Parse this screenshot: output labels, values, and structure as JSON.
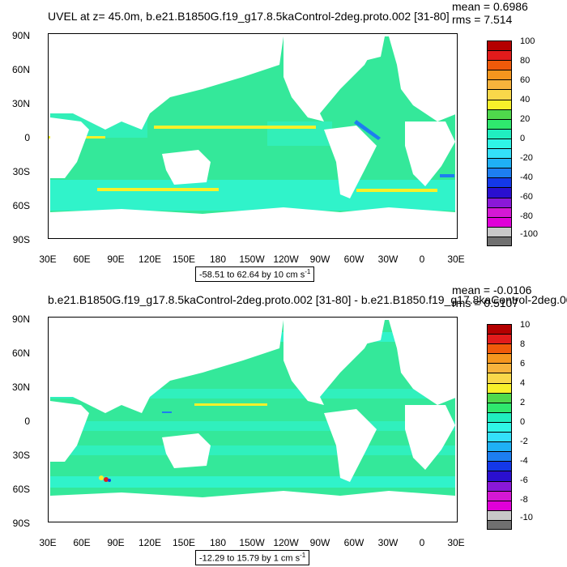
{
  "panels": [
    {
      "title": "UVEL at z=  45.0m, b.e21.B1850G.f19_g17.8.5kaControl-2deg.proto.002 [31-80]",
      "mean": "mean = 0.6986",
      "rms": "rms = 7.514",
      "range_text": "-58.51 to 62.64 by 10 cm s",
      "range_unit_exp": "-1",
      "colorbar_labels": [
        "100",
        "80",
        "60",
        "40",
        "20",
        "0",
        "-20",
        "-40",
        "-60",
        "-80",
        "-100"
      ]
    },
    {
      "title": "b.e21.B1850G.f19_g17.8.5kaControl-2deg.proto.002 [31-80] - b.e21.B1850.f19_g17.8kaControl-2deg.00",
      "mean": "mean = -0.0106",
      "rms": "rms = 0.5107",
      "range_text": "-12.29 to 15.79 by 1 cm s",
      "range_unit_exp": "-1",
      "colorbar_labels": [
        "10",
        "8",
        "6",
        "4",
        "2",
        "0",
        "-2",
        "-4",
        "-6",
        "-8",
        "-10"
      ]
    }
  ],
  "y_ticks": [
    "90N",
    "60N",
    "30N",
    "0",
    "30S",
    "60S",
    "90S"
  ],
  "x_ticks": [
    "30E",
    "60E",
    "90E",
    "120E",
    "150E",
    "180",
    "150W",
    "120W",
    "90W",
    "60W",
    "30W",
    "0",
    "30E"
  ],
  "colorbar_colors": [
    "#b40000",
    "#e21b1b",
    "#f05a0a",
    "#f5961e",
    "#f7b33c",
    "#f9d84a",
    "#f7f02a",
    "#4fd84c",
    "#2fe86e",
    "#20eec0",
    "#2ff5e6",
    "#34e0fa",
    "#1fb0f5",
    "#1d7ef0",
    "#1438e8",
    "#2a0fd0",
    "#8a18d8",
    "#d418d4",
    "#e000d8",
    "#c8c8c8",
    "#707070"
  ],
  "map_colors": {
    "ocean_base": "#34e89a",
    "ocean_light": "#2ff5d6",
    "jet": "#f7f02a",
    "land": "#ffffff"
  }
}
